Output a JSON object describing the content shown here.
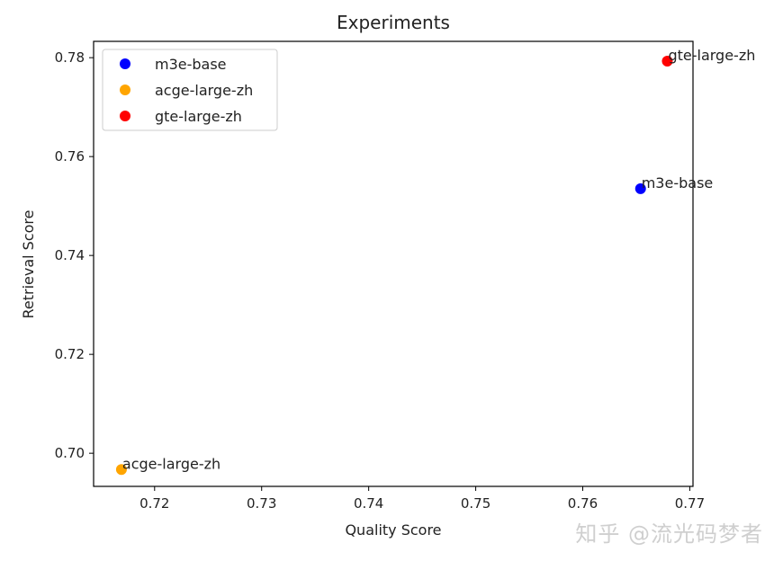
{
  "chart_data": {
    "type": "scatter",
    "title": "Experiments",
    "xlabel": "Quality Score",
    "ylabel": "Retrieval Score",
    "xlim": [
      0.7143,
      0.7703
    ],
    "ylim": [
      0.6933,
      0.7833
    ],
    "xticks": [
      "0.72",
      "0.73",
      "0.74",
      "0.75",
      "0.76",
      "0.77"
    ],
    "yticks": [
      "0.70",
      "0.72",
      "0.74",
      "0.76",
      "0.78"
    ],
    "legend_position": "upper-left",
    "series": [
      {
        "name": "m3e-base",
        "color": "#0000ff",
        "points": [
          {
            "x": 0.7654,
            "y": 0.7535
          }
        ],
        "label": "m3e-base"
      },
      {
        "name": "acge-large-zh",
        "color": "#ffa500",
        "points": [
          {
            "x": 0.7169,
            "y": 0.6967
          }
        ],
        "label": "acge-large-zh"
      },
      {
        "name": "gte-large-zh",
        "color": "#ff0000",
        "points": [
          {
            "x": 0.7679,
            "y": 0.7793
          }
        ],
        "label": "gte-large-zh"
      }
    ]
  },
  "watermark": "知乎 @流光码梦者"
}
